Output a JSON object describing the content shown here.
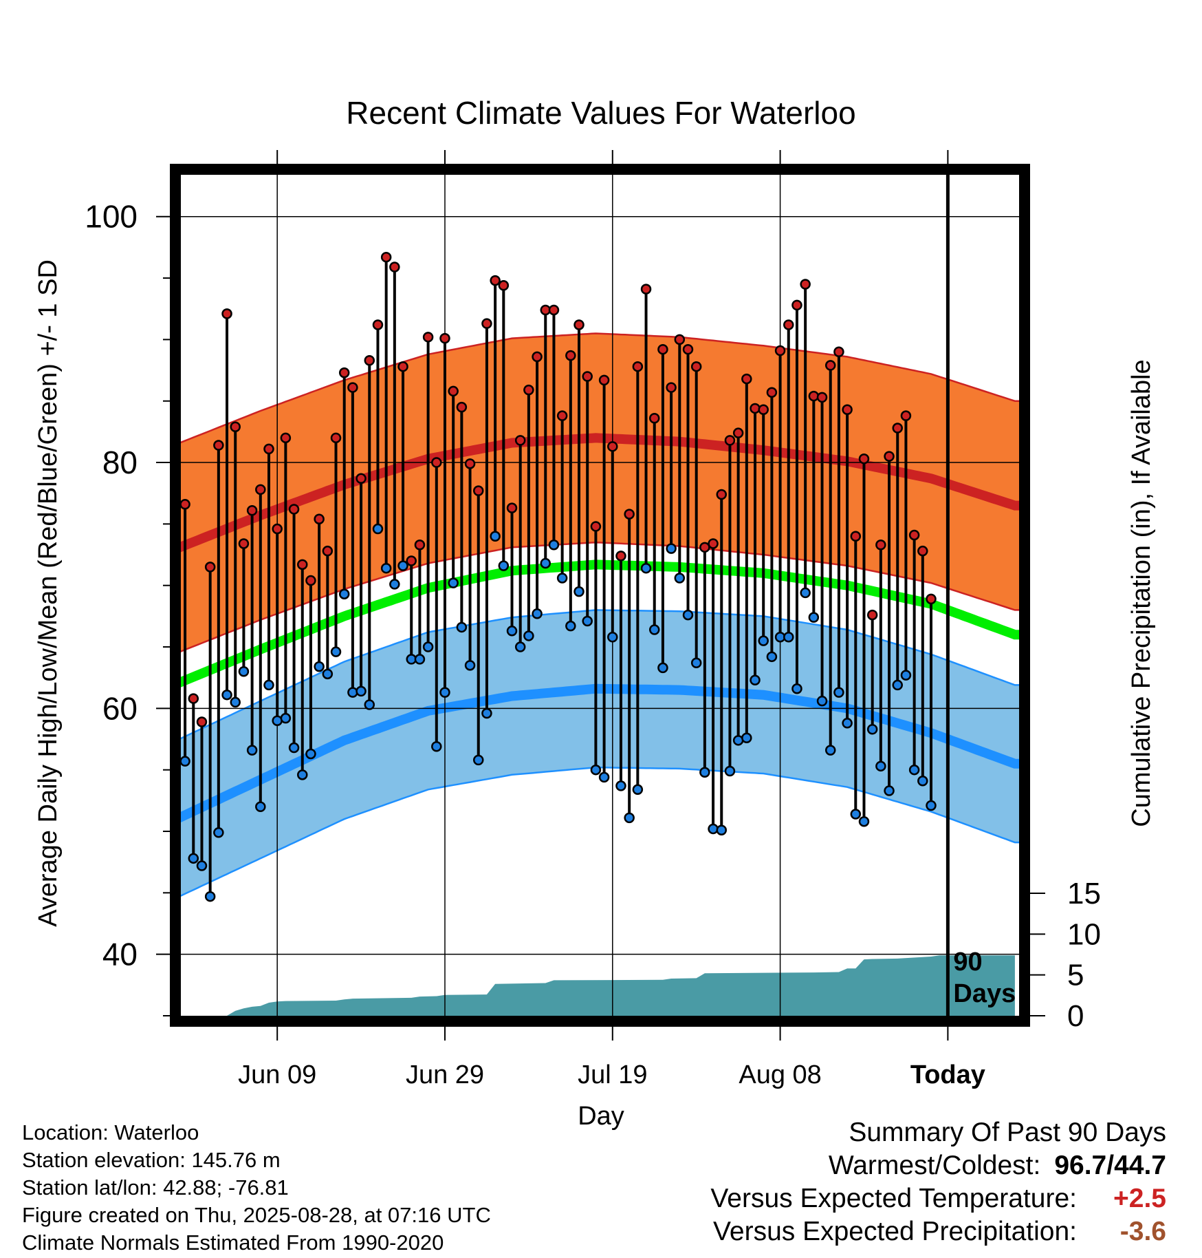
{
  "chart_data": {
    "type": "line",
    "title": "Recent Climate Values For Waterloo",
    "xlabel": "Day",
    "ylabel": "Average Daily High/Low/Mean (Red/Blue/Green) +/- 1 SD",
    "y2label": "Cumulative Precipitation (in), If Available",
    "ylim": [
      35,
      103.4
    ],
    "y_ticks": [
      40,
      60,
      80,
      100
    ],
    "y2lim": [
      0,
      15
    ],
    "y2_ticks": [
      0,
      5,
      10,
      15
    ],
    "x_ticks": [
      "Jun 09",
      "Jun 29",
      "Jul 19",
      "Aug 08",
      "Today"
    ],
    "x_tick_days": [
      12,
      32,
      52,
      72,
      92
    ],
    "today_day": 92,
    "xlim": [
      0.5,
      100.5
    ],
    "today_label": "90 Days",
    "x": [
      1,
      2,
      3,
      4,
      5,
      6,
      7,
      8,
      9,
      10,
      11,
      12,
      13,
      14,
      15,
      16,
      17,
      18,
      19,
      20,
      21,
      22,
      23,
      24,
      25,
      26,
      27,
      28,
      29,
      30,
      31,
      32,
      33,
      34,
      35,
      36,
      37,
      38,
      39,
      40,
      41,
      42,
      43,
      44,
      45,
      46,
      47,
      48,
      49,
      50,
      51,
      52,
      53,
      54,
      55,
      56,
      57,
      58,
      59,
      60,
      61,
      62,
      63,
      64,
      65,
      66,
      67,
      68,
      69,
      70,
      71,
      72,
      73,
      74,
      75,
      76,
      77,
      78,
      79,
      80,
      81,
      82,
      83,
      84,
      85,
      86,
      87,
      88,
      89,
      90,
      91
    ],
    "daily_high": [
      76.6,
      60.8,
      58.9,
      71.5,
      81.4,
      92.1,
      82.9,
      73.4,
      76.1,
      77.8,
      81.1,
      74.6,
      82.0,
      76.2,
      71.7,
      70.4,
      75.4,
      72.8,
      82.0,
      87.3,
      86.1,
      78.7,
      88.3,
      91.2,
      96.7,
      95.9,
      87.8,
      72.0,
      73.3,
      90.2,
      80.0,
      90.1,
      85.8,
      84.5,
      79.9,
      77.7,
      91.3,
      94.8,
      94.4,
      76.3,
      81.8,
      85.9,
      88.6,
      92.4,
      92.4,
      83.8,
      88.7,
      91.2,
      87.0,
      74.8,
      86.7,
      81.3,
      72.4,
      75.8,
      87.8,
      94.1,
      83.6,
      89.2,
      86.1,
      90.0,
      89.2,
      87.8,
      73.1,
      73.4,
      77.4,
      81.8,
      82.4,
      86.8,
      84.4,
      84.3,
      85.7,
      89.1,
      91.2,
      92.8,
      94.5,
      85.4,
      85.3,
      87.9,
      89.0,
      84.3,
      74.0,
      80.3,
      67.6,
      73.3,
      80.5,
      82.8,
      83.8,
      74.1,
      72.8,
      68.9
    ],
    "daily_low": [
      55.7,
      47.8,
      47.2,
      44.7,
      49.9,
      61.1,
      60.5,
      63.0,
      56.6,
      52.0,
      61.9,
      59.0,
      59.2,
      56.8,
      54.6,
      56.3,
      63.4,
      62.8,
      64.6,
      69.3,
      61.3,
      61.4,
      60.3,
      74.6,
      71.4,
      70.1,
      71.6,
      64.0,
      64.0,
      65.0,
      56.9,
      61.3,
      70.2,
      66.6,
      63.5,
      55.8,
      59.6,
      74.0,
      71.6,
      66.3,
      65.0,
      65.9,
      67.7,
      71.8,
      73.3,
      70.6,
      66.7,
      69.5,
      67.1,
      55.0,
      54.4,
      65.8,
      53.7,
      51.1,
      53.4,
      71.4,
      66.4,
      63.3,
      73.0,
      70.6,
      67.6,
      63.7,
      54.8,
      50.2,
      50.1,
      54.9,
      57.4,
      57.6,
      62.3,
      65.5,
      64.2,
      65.8,
      65.8,
      61.6,
      69.4,
      67.4,
      60.6,
      56.6,
      61.3,
      58.8,
      51.4,
      50.8,
      58.3,
      55.3,
      53.3,
      61.9,
      62.7,
      55.0,
      54.1,
      52.1
    ],
    "series": [
      {
        "name": "Average High",
        "x": [
          0,
          10,
          20,
          30,
          40,
          50,
          60,
          70,
          80,
          90,
          100
        ],
        "values": [
          73.0,
          75.7,
          78.2,
          80.3,
          81.6,
          82.0,
          81.7,
          81.0,
          80.1,
          78.7,
          76.5
        ],
        "sd": 8.5
      },
      {
        "name": "Average Mean",
        "x": [
          0,
          10,
          20,
          30,
          40,
          50,
          60,
          70,
          80,
          90,
          100
        ],
        "values": [
          62.0,
          64.8,
          67.5,
          69.8,
          71.2,
          71.7,
          71.5,
          71.0,
          70.0,
          68.5,
          66.0
        ]
      },
      {
        "name": "Average Low",
        "x": [
          0,
          10,
          20,
          30,
          40,
          50,
          60,
          70,
          80,
          90,
          100
        ],
        "values": [
          51.0,
          54.2,
          57.4,
          59.8,
          61.0,
          61.6,
          61.5,
          61.1,
          60.0,
          58.0,
          55.5
        ],
        "sd": 6.4
      },
      {
        "name": "Cumulative Precipitation",
        "axis": "y2",
        "x": [
          0,
          6,
          7,
          8,
          9,
          10,
          11,
          12,
          13,
          19,
          20,
          21,
          28,
          29,
          31,
          32,
          37,
          38,
          44,
          45,
          58,
          59,
          62,
          63,
          76,
          79,
          80,
          81,
          82,
          83,
          86,
          90,
          91,
          92,
          100
        ],
        "values": [
          0,
          0,
          0.6,
          0.9,
          1.1,
          1.2,
          1.6,
          1.75,
          1.8,
          1.85,
          2.0,
          2.1,
          2.2,
          2.35,
          2.4,
          2.55,
          2.6,
          3.9,
          4.0,
          4.35,
          4.4,
          4.55,
          4.6,
          5.2,
          5.3,
          5.35,
          5.8,
          5.8,
          6.9,
          6.95,
          7.0,
          7.25,
          7.4,
          7.4,
          7.4
        ]
      }
    ]
  },
  "info": {
    "location": "Location: Waterloo",
    "elevation": "Station elevation: 145.76 m",
    "latlon": "Station lat/lon: 42.88; -76.81",
    "created": "Figure created on Thu, 2025-08-28, at 07:16 UTC",
    "normals": "Climate Normals Estimated From 1990-2020"
  },
  "summary": {
    "heading": "Summary Of Past 90 Days",
    "warm_cold_label": "Warmest/Coldest:",
    "warm_cold_value": "96.7/44.7",
    "temp_label": "Versus Expected Temperature:",
    "temp_value": "+2.5",
    "temp_color": "#cc2222",
    "precip_label": "Versus Expected Precipitation:",
    "precip_value": "-3.6",
    "precip_color": "#a0522d"
  },
  "colors": {
    "high_band": "#f57a30",
    "high_line": "#cc2222",
    "mean_line": "#00ee00",
    "low_band": "#82c0e8",
    "low_line": "#1e90ff",
    "precip_fill": "#4a9ba5",
    "high_dot": "#cc2222",
    "low_dot": "#1e7fe0"
  }
}
